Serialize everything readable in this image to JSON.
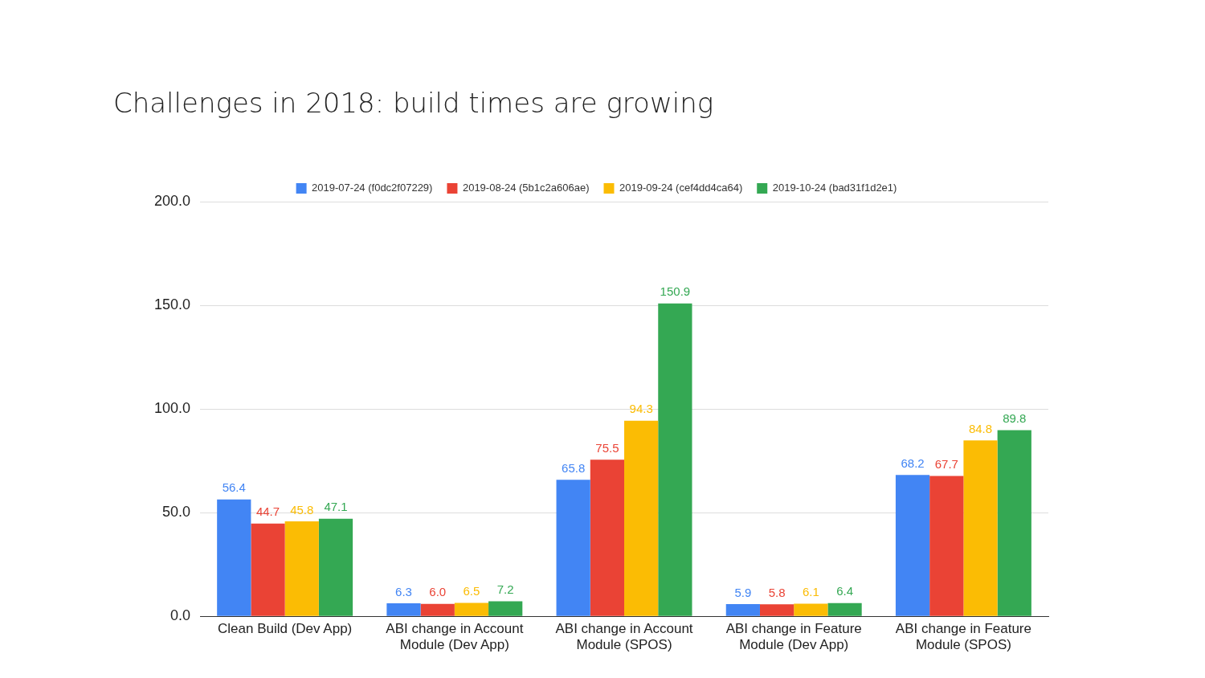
{
  "chart_data": {
    "type": "bar",
    "title": "Challenges in 2018: build times are growing",
    "categories": [
      "Clean Build (Dev App)",
      "ABI change in Account Module (Dev App)",
      "ABI change in Account Module (SPOS)",
      "ABI change in Feature Module (Dev App)",
      "ABI change in Feature Module (SPOS)"
    ],
    "series": [
      {
        "name": "2019-07-24 (f0dc2f07229)",
        "color": "#4285f4",
        "values": [
          56.4,
          6.3,
          65.8,
          5.9,
          68.2
        ],
        "value_labels": [
          "56.4",
          "6.3",
          "65.8",
          "5.9",
          "68.2"
        ]
      },
      {
        "name": "2019-08-24 (5b1c2a606ae)",
        "color": "#ea4335",
        "values": [
          44.7,
          6.0,
          75.5,
          5.8,
          67.7
        ],
        "value_labels": [
          "44.7",
          "6.0",
          "75.5",
          "5.8",
          "67.7"
        ]
      },
      {
        "name": "2019-09-24 (cef4dd4ca64)",
        "color": "#fbbc04",
        "values": [
          45.8,
          6.5,
          94.3,
          6.1,
          84.8
        ],
        "value_labels": [
          "45.8",
          "6.5",
          "94.3",
          "6.1",
          "84.8"
        ]
      },
      {
        "name": "2019-10-24 (bad31f1d2e1)",
        "color": "#34a853",
        "values": [
          47.1,
          7.2,
          150.9,
          6.4,
          89.8
        ],
        "value_labels": [
          "47.1",
          "7.2",
          "150.9",
          "6.4",
          "89.8"
        ]
      }
    ],
    "ylim": [
      0,
      200
    ],
    "yticks": [
      {
        "value": 0,
        "label": "0.0"
      },
      {
        "value": 50,
        "label": "50.0"
      },
      {
        "value": 100,
        "label": "100.0"
      },
      {
        "value": 150,
        "label": "150.0"
      },
      {
        "value": 200,
        "label": "200.0"
      }
    ],
    "grid": "y",
    "legend": "top"
  }
}
